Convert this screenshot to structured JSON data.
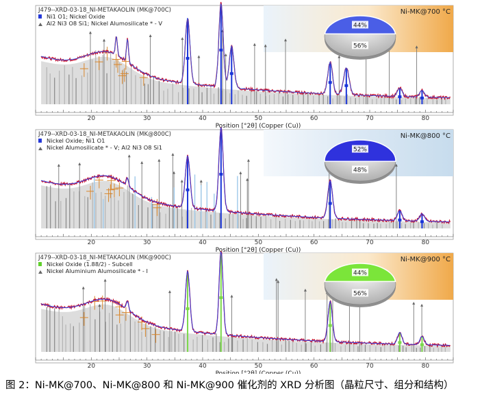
{
  "caption": "图 2：Ni-MK@700、Ni-MK@800 和 Ni-MK@900 催化剂的 XRD 分析图（晶粒尺寸、组分和结构）",
  "chart_data": [
    {
      "type": "line",
      "title": "J479--XRD-03-18_NI-METAKAOLIN (MK@700C)",
      "corner_label": "Ni-MK@700 °C",
      "xlabel": "Position [°2θ] (Copper (Cu))",
      "xlim": [
        10,
        85
      ],
      "xticks": [
        20,
        30,
        40,
        50,
        60,
        70,
        80
      ],
      "legend": [
        {
          "marker": "blue",
          "text": "Ni1 O1; Nickel Oxide"
        },
        {
          "marker": "gray",
          "text": "Al2 Ni3 O8 Si1; Nickel Alumosilicate * - V"
        }
      ],
      "pie": [
        {
          "label": "44%",
          "value": 44
        },
        {
          "label": "56%",
          "value": 56
        }
      ],
      "colors": {
        "pie_main": "#4a5ee6",
        "pattern": "#3b4fd6",
        "data": "#c8102e",
        "phase": "#1a35d8",
        "banner": "#f2c689"
      },
      "peaks": [
        {
          "x": 37.3,
          "h": 0.78,
          "w": 0.6
        },
        {
          "x": 43.3,
          "h": 1.0,
          "w": 0.55
        },
        {
          "x": 45.2,
          "h": 0.5,
          "w": 0.6
        },
        {
          "x": 62.9,
          "h": 0.38,
          "w": 0.6
        },
        {
          "x": 65.8,
          "h": 0.32,
          "w": 0.7
        },
        {
          "x": 75.4,
          "h": 0.1,
          "w": 0.6
        },
        {
          "x": 79.4,
          "h": 0.08,
          "w": 0.6
        }
      ]
    },
    {
      "type": "line",
      "title": "J479--XRD-03-18_NI-METAKAOLIN (MK@800C)",
      "corner_label": "Ni-MK@800 °C",
      "xlabel": "Position [°2θ] (Copper (Cu))",
      "xlim": [
        10,
        85
      ],
      "xticks": [
        20,
        30,
        40,
        50,
        60,
        70,
        80
      ],
      "legend": [
        {
          "marker": "blue",
          "text": "Nickel Oxide; Ni1 O1"
        },
        {
          "marker": "gray",
          "text": "Nickel Alumosilicate * - V; Al2 Ni3 O8 Si1"
        }
      ],
      "pie": [
        {
          "label": "52%",
          "value": 52
        },
        {
          "label": "48%",
          "value": 48
        }
      ],
      "colors": {
        "pie_main": "#2f32dd",
        "pattern": "#3340e0",
        "data": "#c8102e",
        "phase": "#1a35d8",
        "banner": "#d9e7f3"
      },
      "peaks": [
        {
          "x": 37.3,
          "h": 0.62,
          "w": 0.6
        },
        {
          "x": 43.3,
          "h": 1.0,
          "w": 0.55
        },
        {
          "x": 62.9,
          "h": 0.45,
          "w": 0.6
        },
        {
          "x": 75.4,
          "h": 0.12,
          "w": 0.6
        },
        {
          "x": 79.4,
          "h": 0.09,
          "w": 0.6
        }
      ]
    },
    {
      "type": "line",
      "title": "J479--XRD-03-18_NI-METAKAOLIN (MK@900C)",
      "corner_label": "Ni-MK@900 °C",
      "xlabel": "Position [°2θ] (Copper (Cu))",
      "xlim": [
        10,
        85
      ],
      "xticks": [
        20,
        30,
        40,
        50,
        60,
        70,
        80
      ],
      "legend": [
        {
          "marker": "green",
          "text": "Nickel Oxide (1.88/2) - Subcell"
        },
        {
          "marker": "gray",
          "text": "Nickel Aluminium Alumosilicate * - I"
        }
      ],
      "pie": [
        {
          "label": "44%",
          "value": 44
        },
        {
          "label": "56%",
          "value": 56
        }
      ],
      "colors": {
        "pie_main": "#7be53a",
        "pattern": "#3340e0",
        "data": "#c8102e",
        "phase": "#7bd84a",
        "banner": "#f2c689"
      },
      "peaks": [
        {
          "x": 37.3,
          "h": 0.72,
          "w": 0.55
        },
        {
          "x": 43.3,
          "h": 1.0,
          "w": 0.5
        },
        {
          "x": 62.9,
          "h": 0.48,
          "w": 0.55
        },
        {
          "x": 75.4,
          "h": 0.14,
          "w": 0.55
        },
        {
          "x": 79.4,
          "h": 0.1,
          "w": 0.55
        }
      ]
    }
  ]
}
